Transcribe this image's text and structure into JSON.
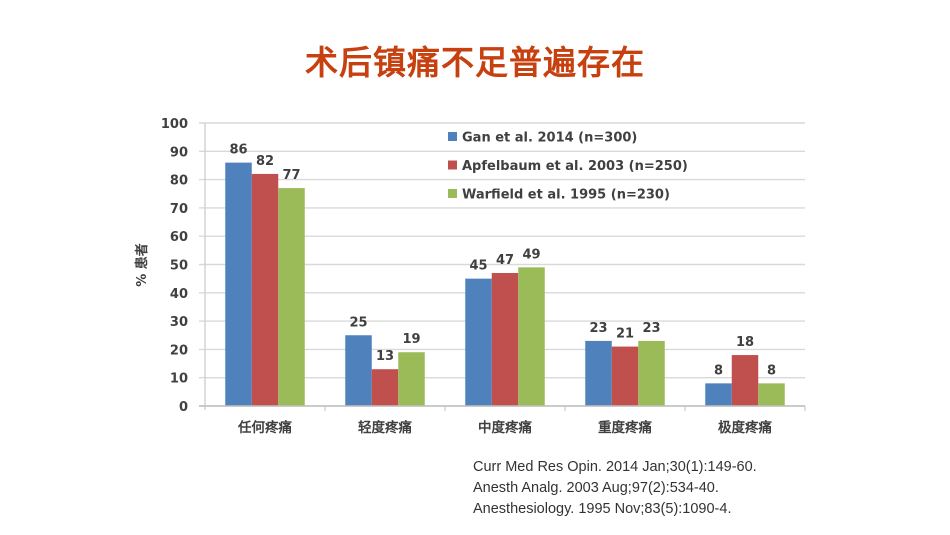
{
  "slide": {
    "title": "术后镇痛不足普遍存在",
    "references": [
      "Curr Med Res Opin. 2014 Jan;30(1):149-60.",
      "Anesth Analg. 2003 Aug;97(2):534-40.",
      "Anesthesiology. 1995 Nov;83(5):1090-4."
    ]
  },
  "chart_data": {
    "type": "bar",
    "title": "",
    "xlabel": "",
    "ylabel": "% 患者",
    "ylim": [
      0,
      100
    ],
    "yticks": [
      0,
      10,
      20,
      30,
      40,
      50,
      60,
      70,
      80,
      90,
      100
    ],
    "grid": true,
    "legend_position": "top-right",
    "categories": [
      "任何疼痛",
      "轻度疼痛",
      "中度疼痛",
      "重度疼痛",
      "极度疼痛"
    ],
    "series": [
      {
        "name": "Gan et al. 2014 (n=300)",
        "color": "#4f81bd",
        "values": [
          86,
          25,
          45,
          23,
          8
        ]
      },
      {
        "name": "Apfelbaum et al. 2003 (n=250)",
        "color": "#c0504d",
        "values": [
          82,
          13,
          47,
          21,
          18
        ]
      },
      {
        "name": "Warfield et al. 1995 (n=230)",
        "color": "#9bbb59",
        "values": [
          77,
          19,
          49,
          23,
          8
        ]
      }
    ],
    "data_labels": true
  }
}
